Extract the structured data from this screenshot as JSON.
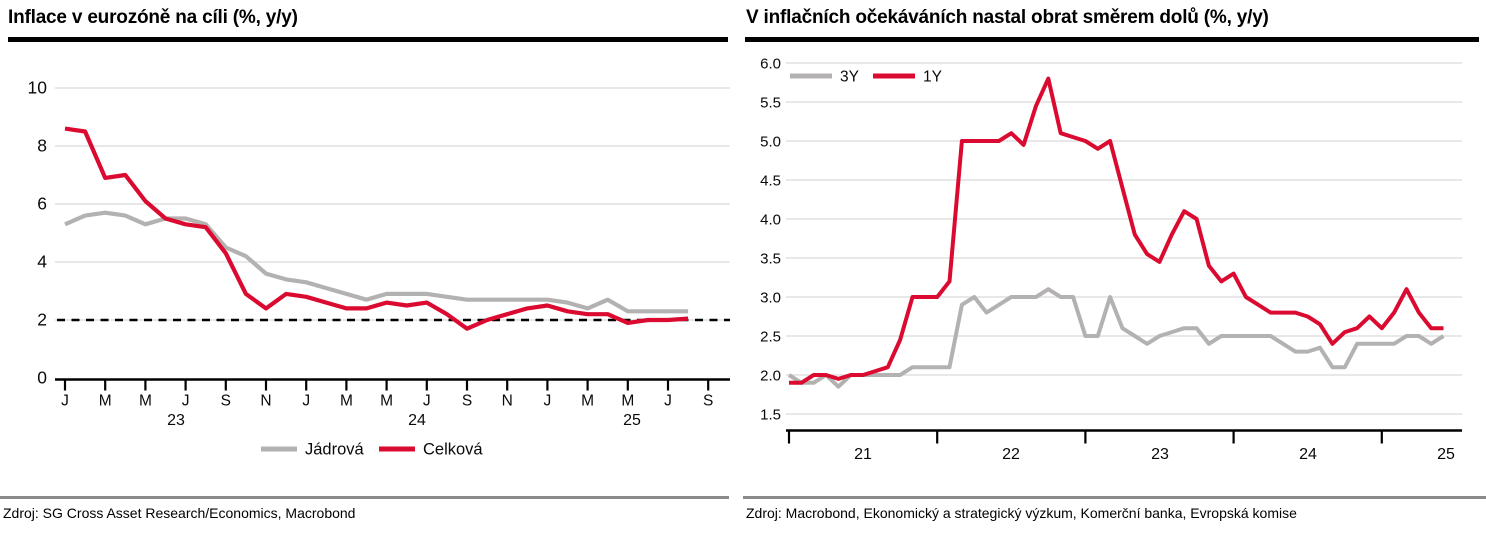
{
  "page": {
    "background": "#ffffff"
  },
  "colors": {
    "red_line": "#db0a30",
    "gray_line": "#b4b1b1",
    "gridline": "#dbdbdb",
    "axis": "#000000",
    "footer_rule": "#8a8a8a"
  },
  "chart_data": [
    {
      "type": "line",
      "title": "Inflace v eurozóně na cíli (%, y/y)",
      "source": "Zdroj: SG Cross Asset Research/Economics, Macrobond",
      "ylim": [
        0,
        10
      ],
      "yticks": [
        "0",
        "2",
        "4",
        "6",
        "8",
        "10"
      ],
      "grid": true,
      "target_line": 2,
      "x_start": "2023-01",
      "x_end": "2025-08",
      "xticks": [
        "J",
        "M",
        "M",
        "J",
        "S",
        "N",
        "J",
        "M",
        "M",
        "J",
        "S",
        "N",
        "J",
        "M",
        "M",
        "J",
        "S"
      ],
      "years": [
        "23",
        "24",
        "25"
      ],
      "legend_position": "bottom-center",
      "series": [
        {
          "name": "jadrova",
          "label": "Jádrová",
          "color": "#b4b1b1",
          "values": [
            5.3,
            5.6,
            5.7,
            5.6,
            5.3,
            5.5,
            5.5,
            5.3,
            4.5,
            4.2,
            3.6,
            3.4,
            3.3,
            3.1,
            2.9,
            2.7,
            2.9,
            2.9,
            2.9,
            2.8,
            2.7,
            2.7,
            2.7,
            2.7,
            2.7,
            2.6,
            2.4,
            2.7,
            2.3,
            2.3,
            2.3,
            2.3
          ]
        },
        {
          "name": "celkova",
          "label": "Celková",
          "color": "#db0a30",
          "values": [
            8.6,
            8.5,
            6.9,
            7.0,
            6.1,
            5.5,
            5.3,
            5.2,
            4.3,
            2.9,
            2.4,
            2.9,
            2.8,
            2.6,
            2.4,
            2.4,
            2.6,
            2.5,
            2.6,
            2.2,
            1.7,
            2.0,
            2.2,
            2.4,
            2.5,
            2.3,
            2.2,
            2.2,
            1.9,
            2.0,
            2.0,
            2.05
          ]
        }
      ]
    },
    {
      "type": "line",
      "title": "V inflačních očekáváních nastal obrat směrem dolů (%, y/y)",
      "source": "Zdroj: Macrobond, Ekonomický a strategický výzkum, Komerční banka, Evropská komise",
      "ylim": [
        1.5,
        6.0
      ],
      "yticks": [
        "1.5",
        "2.0",
        "2.5",
        "3.0",
        "3.5",
        "4.0",
        "4.5",
        "5.0",
        "5.5",
        "6.0"
      ],
      "grid": true,
      "target_line": null,
      "x_start": "2021-01",
      "x_end": "2025-06",
      "xticks": [
        "",
        "",
        "",
        "",
        ""
      ],
      "years": [
        "21",
        "22",
        "23",
        "24",
        "25"
      ],
      "legend_position": "top-left",
      "series": [
        {
          "name": "3y",
          "label": "3Y",
          "color": "#b4b1b1",
          "values": [
            2.0,
            1.9,
            1.9,
            2.0,
            1.85,
            2.0,
            2.0,
            2.0,
            2.0,
            2.0,
            2.1,
            2.1,
            2.1,
            2.1,
            2.9,
            3.0,
            2.8,
            2.9,
            3.0,
            3.0,
            3.0,
            3.1,
            3.0,
            3.0,
            2.5,
            2.5,
            3.0,
            2.6,
            2.5,
            2.4,
            2.5,
            2.55,
            2.6,
            2.6,
            2.4,
            2.5,
            2.5,
            2.5,
            2.5,
            2.5,
            2.4,
            2.3,
            2.3,
            2.35,
            2.1,
            2.1,
            2.4,
            2.4,
            2.4,
            2.4,
            2.5,
            2.5,
            2.4,
            2.5
          ]
        },
        {
          "name": "1y",
          "label": "1Y",
          "color": "#db0a30",
          "values": [
            1.9,
            1.9,
            2.0,
            2.0,
            1.95,
            2.0,
            2.0,
            2.05,
            2.1,
            2.45,
            3.0,
            3.0,
            3.0,
            3.2,
            5.0,
            5.0,
            5.0,
            5.0,
            5.1,
            4.95,
            5.45,
            5.8,
            5.1,
            5.05,
            5.0,
            4.9,
            5.0,
            4.4,
            3.8,
            3.55,
            3.45,
            3.8,
            4.1,
            4.0,
            3.4,
            3.2,
            3.3,
            3.0,
            2.9,
            2.8,
            2.8,
            2.8,
            2.75,
            2.65,
            2.4,
            2.55,
            2.6,
            2.75,
            2.6,
            2.8,
            3.1,
            2.8,
            2.6,
            2.6
          ]
        }
      ]
    }
  ]
}
